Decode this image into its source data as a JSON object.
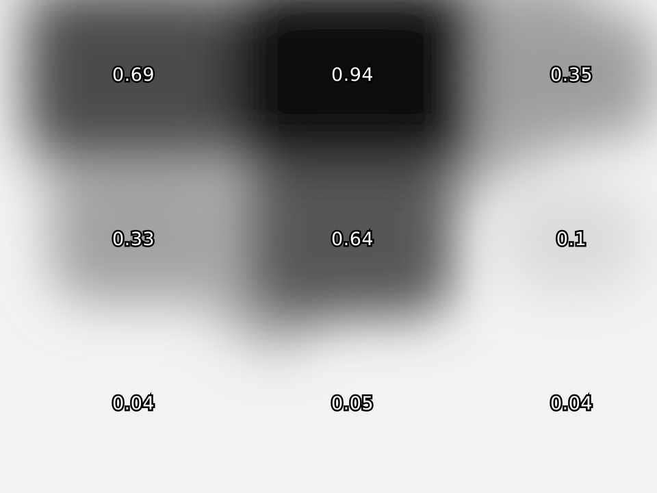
{
  "heatmap": {
    "rows": [
      [
        "0.69",
        "0.94",
        "0.35"
      ],
      [
        "0.33",
        "0.64",
        "0.1"
      ],
      [
        "0.04",
        "0.05",
        "0.04"
      ]
    ],
    "colormap": [
      "#f2f2f2",
      "#000000"
    ]
  }
}
